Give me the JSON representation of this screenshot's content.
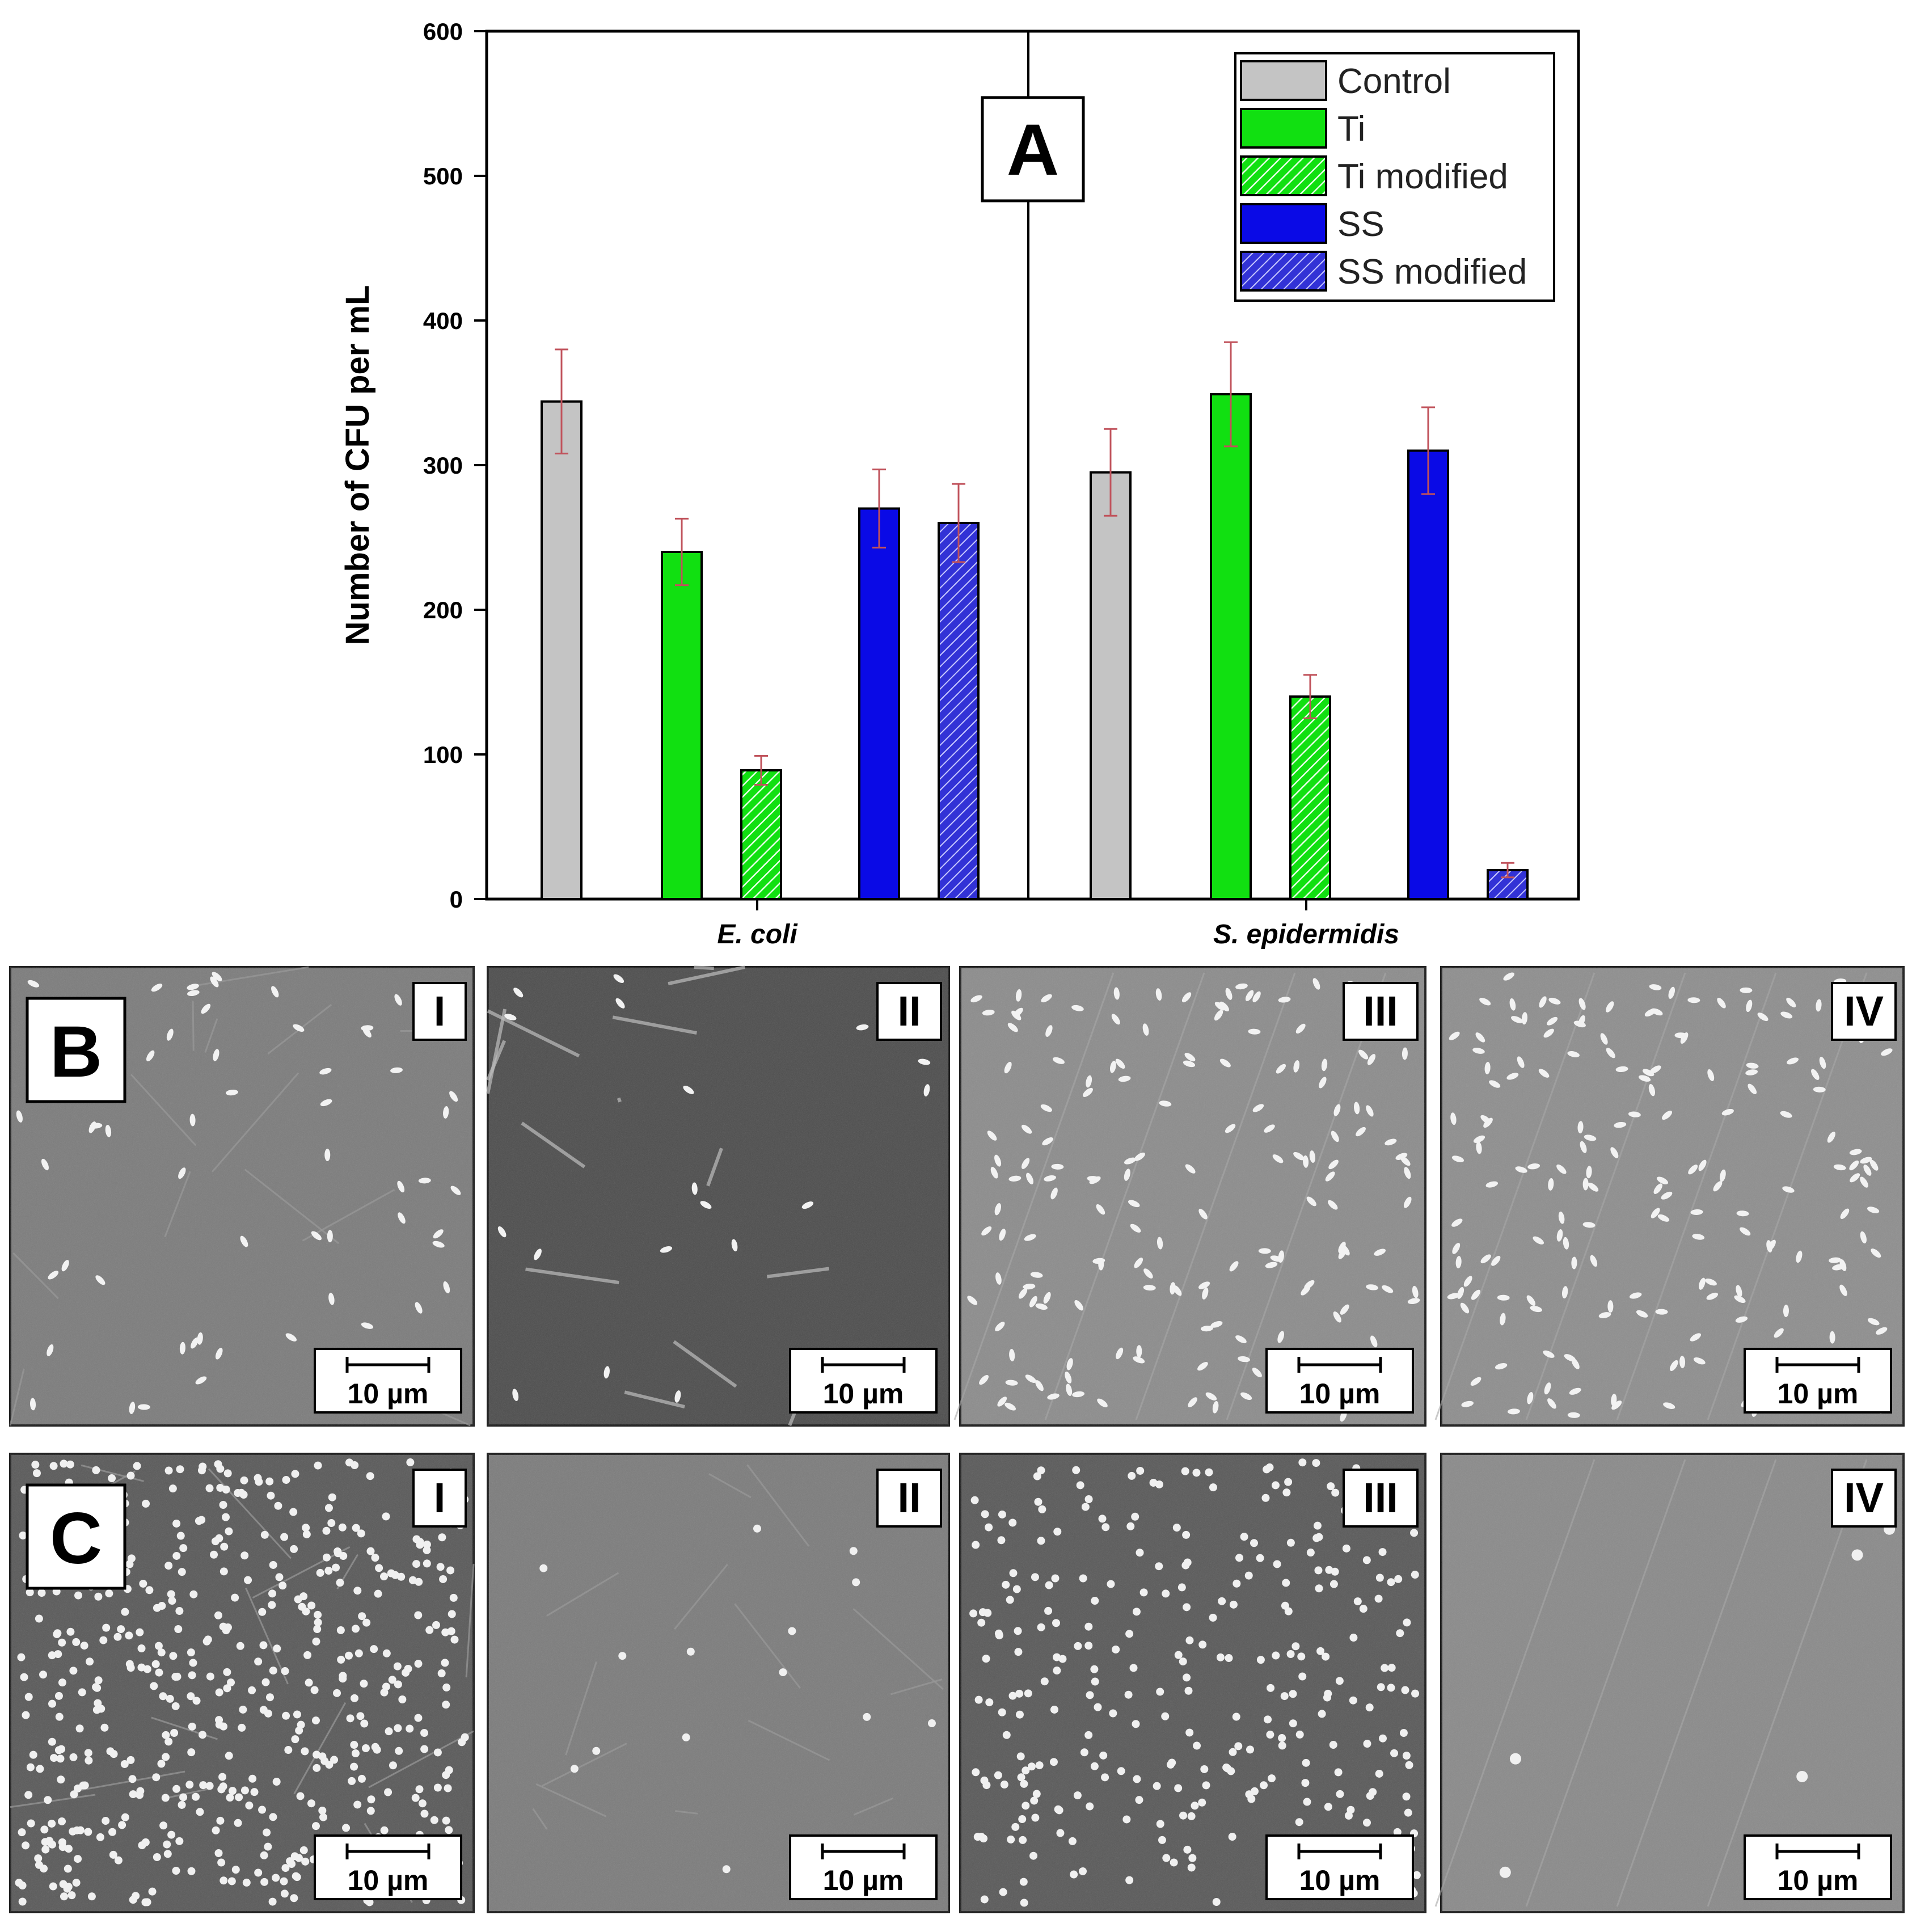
{
  "chart_data": {
    "type": "bar",
    "panel_label": "A",
    "ylabel": "Number of CFU per mL",
    "xlabel": "",
    "ylim": [
      0,
      600
    ],
    "yticks": [
      0,
      100,
      200,
      300,
      400,
      500,
      600
    ],
    "categories": [
      "E. coli",
      "S. epidermidis"
    ],
    "legend_position": "top-right",
    "grid": false,
    "series": [
      {
        "name": "Control",
        "color": "#c4c4c4",
        "pattern": "solid",
        "values": [
          344,
          295
        ],
        "errors": [
          36,
          30
        ]
      },
      {
        "name": "Ti",
        "color": "#11e011",
        "pattern": "solid",
        "values": [
          240,
          349
        ],
        "errors": [
          23,
          36
        ]
      },
      {
        "name": "Ti modified",
        "color": "#11e011",
        "pattern": "hatched",
        "values": [
          89,
          140
        ],
        "errors": [
          10,
          15
        ]
      },
      {
        "name": "SS",
        "color": "#0a0ae6",
        "pattern": "solid",
        "values": [
          270,
          310
        ],
        "errors": [
          27,
          30
        ]
      },
      {
        "name": "SS modified",
        "color": "#3535d8",
        "pattern": "hatched",
        "values": [
          260,
          20
        ],
        "errors": [
          27,
          5
        ]
      }
    ],
    "error_bar_color": "#c0525b"
  },
  "micrographs": {
    "scale_bar_label": "10 µm",
    "rows": [
      {
        "label": "B",
        "panels": [
          "I",
          "II",
          "III",
          "IV"
        ]
      },
      {
        "label": "C",
        "panels": [
          "I",
          "II",
          "III",
          "IV"
        ]
      }
    ]
  }
}
